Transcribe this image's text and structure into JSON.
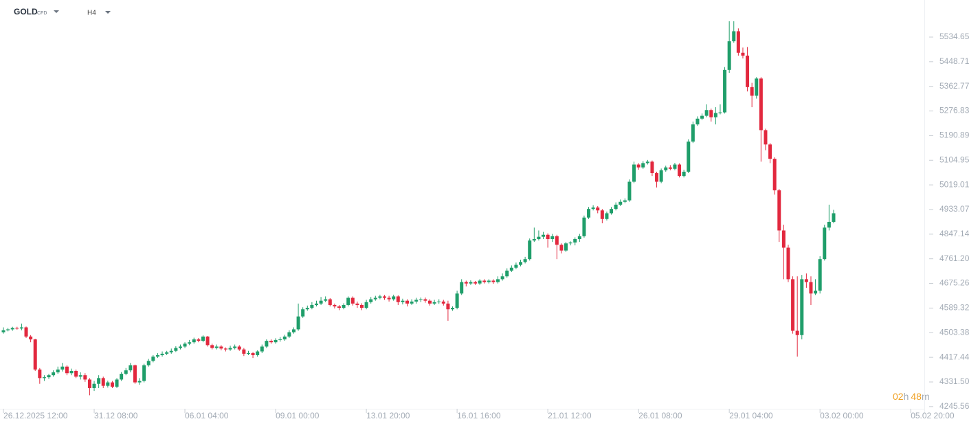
{
  "header": {
    "symbol": "GOLD",
    "symbol_type": "CFD",
    "timeframe": "H4"
  },
  "countdown": [
    "02",
    "h",
    "48",
    "m"
  ],
  "chart_data": {
    "type": "candlestick",
    "up_color": "#1f9e6a",
    "down_color": "#e2283e",
    "ylim": [
      4238,
      5664
    ],
    "yticks": [
      5534.65,
      5448.71,
      5362.77,
      5276.83,
      5190.89,
      5104.95,
      5019.01,
      4933.07,
      4847.14,
      {
        "value": 4761.2,
        "label": "4761.20"
      },
      4675.26,
      4589.32,
      4503.38,
      4417.44,
      {
        "value": 4331.5,
        "label": "4331.50"
      },
      4245.56
    ],
    "xlim": [
      -0.76,
      203
    ],
    "xticks": [
      {
        "value": 0,
        "label": "26.12.2025 12:00"
      },
      {
        "value": 20,
        "label": "31.12 08:00"
      },
      {
        "value": 40,
        "label": "06.01 04:00"
      },
      {
        "value": 60,
        "label": "09.01 00:00"
      },
      {
        "value": 80,
        "label": "13.01 20:00"
      },
      {
        "value": 100,
        "label": "16.01 16:00"
      },
      {
        "value": 120,
        "label": "21.01 12:00"
      },
      {
        "value": 140,
        "label": "26.01 08:00"
      },
      {
        "value": 160,
        "label": "29.01 04:00"
      },
      {
        "value": 180,
        "label": "03.02 00:00"
      },
      {
        "value": 200,
        "label": "05.02 20:00"
      }
    ],
    "ohlc": [
      [
        4505,
        4522,
        4500,
        4512
      ],
      [
        4512,
        4520,
        4508,
        4515
      ],
      [
        4515,
        4524,
        4510,
        4520
      ],
      [
        4520,
        4524,
        4514,
        4518
      ],
      [
        4518,
        4535,
        4512,
        4522
      ],
      [
        4522,
        4525,
        4485,
        4490
      ],
      [
        4490,
        4495,
        4470,
        4480
      ],
      [
        4480,
        4482,
        4370,
        4375
      ],
      [
        4375,
        4380,
        4325,
        4345
      ],
      [
        4345,
        4355,
        4335,
        4348
      ],
      [
        4348,
        4360,
        4342,
        4355
      ],
      [
        4355,
        4372,
        4350,
        4365
      ],
      [
        4365,
        4385,
        4360,
        4375
      ],
      [
        4375,
        4398,
        4368,
        4385
      ],
      [
        4385,
        4390,
        4355,
        4362
      ],
      [
        4362,
        4378,
        4355,
        4370
      ],
      [
        4370,
        4375,
        4345,
        4350
      ],
      [
        4350,
        4365,
        4340,
        4355
      ],
      [
        4355,
        4362,
        4332,
        4340
      ],
      [
        4340,
        4345,
        4285,
        4310
      ],
      [
        4310,
        4335,
        4300,
        4325
      ],
      [
        4325,
        4355,
        4310,
        4345
      ],
      [
        4345,
        4350,
        4310,
        4318
      ],
      [
        4318,
        4336,
        4312,
        4330
      ],
      [
        4330,
        4335,
        4310,
        4315
      ],
      [
        4315,
        4345,
        4310,
        4340
      ],
      [
        4340,
        4366,
        4335,
        4360
      ],
      [
        4360,
        4380,
        4355,
        4372
      ],
      [
        4372,
        4398,
        4365,
        4390
      ],
      [
        4390,
        4392,
        4325,
        4330
      ],
      [
        4330,
        4345,
        4322,
        4335
      ],
      [
        4335,
        4395,
        4330,
        4390
      ],
      [
        4390,
        4412,
        4385,
        4405
      ],
      [
        4405,
        4425,
        4400,
        4420
      ],
      [
        4420,
        4432,
        4415,
        4425
      ],
      [
        4425,
        4438,
        4420,
        4430
      ],
      [
        4430,
        4440,
        4425,
        4435
      ],
      [
        4435,
        4448,
        4430,
        4440
      ],
      [
        4440,
        4456,
        4436,
        4450
      ],
      [
        4450,
        4462,
        4445,
        4455
      ],
      [
        4455,
        4470,
        4450,
        4465
      ],
      [
        4465,
        4478,
        4460,
        4470
      ],
      [
        4470,
        4486,
        4465,
        4480
      ],
      [
        4480,
        4485,
        4470,
        4475
      ],
      [
        4475,
        4494,
        4470,
        4490
      ],
      [
        4490,
        4492,
        4455,
        4460
      ],
      [
        4460,
        4465,
        4445,
        4450
      ],
      [
        4450,
        4462,
        4445,
        4455
      ],
      [
        4455,
        4460,
        4442,
        4448
      ],
      [
        4448,
        4452,
        4438,
        4445
      ],
      [
        4445,
        4458,
        4440,
        4450
      ],
      [
        4450,
        4462,
        4445,
        4455
      ],
      [
        4455,
        4460,
        4440,
        4445
      ],
      [
        4445,
        4450,
        4422,
        4430
      ],
      [
        4430,
        4440,
        4425,
        4432
      ],
      [
        4432,
        4436,
        4415,
        4425
      ],
      [
        4425,
        4442,
        4420,
        4438
      ],
      [
        4438,
        4462,
        4432,
        4455
      ],
      [
        4455,
        4480,
        4450,
        4475
      ],
      [
        4475,
        4480,
        4465,
        4470
      ],
      [
        4470,
        4484,
        4465,
        4478
      ],
      [
        4478,
        4488,
        4472,
        4480
      ],
      [
        4480,
        4496,
        4475,
        4490
      ],
      [
        4490,
        4512,
        4485,
        4505
      ],
      [
        4505,
        4522,
        4500,
        4515
      ],
      [
        4515,
        4605,
        4510,
        4560
      ],
      [
        4560,
        4592,
        4555,
        4585
      ],
      [
        4585,
        4598,
        4580,
        4590
      ],
      [
        4590,
        4610,
        4585,
        4600
      ],
      [
        4600,
        4615,
        4595,
        4605
      ],
      [
        4605,
        4628,
        4600,
        4615
      ],
      [
        4615,
        4630,
        4610,
        4620
      ],
      [
        4620,
        4624,
        4595,
        4600
      ],
      [
        4600,
        4605,
        4588,
        4595
      ],
      [
        4595,
        4600,
        4582,
        4590
      ],
      [
        4590,
        4606,
        4585,
        4600
      ],
      [
        4600,
        4630,
        4595,
        4625
      ],
      [
        4625,
        4630,
        4598,
        4605
      ],
      [
        4605,
        4612,
        4590,
        4600
      ],
      [
        4600,
        4606,
        4582,
        4590
      ],
      [
        4590,
        4618,
        4585,
        4610
      ],
      [
        4610,
        4628,
        4605,
        4620
      ],
      [
        4620,
        4632,
        4615,
        4625
      ],
      [
        4625,
        4636,
        4620,
        4630
      ],
      [
        4630,
        4635,
        4618,
        4625
      ],
      [
        4625,
        4632,
        4612,
        4620
      ],
      [
        4620,
        4636,
        4615,
        4630
      ],
      [
        4630,
        4634,
        4600,
        4610
      ],
      [
        4610,
        4622,
        4602,
        4615
      ],
      [
        4615,
        4620,
        4595,
        4605
      ],
      [
        4605,
        4620,
        4600,
        4612
      ],
      [
        4612,
        4625,
        4605,
        4618
      ],
      [
        4618,
        4626,
        4610,
        4620
      ],
      [
        4620,
        4626,
        4608,
        4615
      ],
      [
        4615,
        4620,
        4598,
        4605
      ],
      [
        4605,
        4618,
        4600,
        4610
      ],
      [
        4610,
        4620,
        4604,
        4612
      ],
      [
        4612,
        4618,
        4598,
        4605
      ],
      [
        4605,
        4615,
        4545,
        4585
      ],
      [
        4585,
        4595,
        4580,
        4590
      ],
      [
        4590,
        4650,
        4585,
        4640
      ],
      [
        4640,
        4690,
        4635,
        4680
      ],
      [
        4680,
        4685,
        4665,
        4675
      ],
      [
        4675,
        4686,
        4670,
        4680
      ],
      [
        4680,
        4684,
        4670,
        4675
      ],
      [
        4675,
        4690,
        4670,
        4685
      ],
      [
        4685,
        4690,
        4675,
        4680
      ],
      [
        4680,
        4690,
        4675,
        4685
      ],
      [
        4685,
        4690,
        4674,
        4680
      ],
      [
        4680,
        4700,
        4675,
        4690
      ],
      [
        4690,
        4710,
        4685,
        4700
      ],
      [
        4700,
        4728,
        4695,
        4720
      ],
      [
        4720,
        4738,
        4715,
        4730
      ],
      [
        4730,
        4748,
        4725,
        4740
      ],
      [
        4740,
        4758,
        4735,
        4750
      ],
      [
        4750,
        4768,
        4745,
        4760
      ],
      [
        4760,
        4832,
        4755,
        4825
      ],
      [
        4825,
        4870,
        4820,
        4830
      ],
      [
        4830,
        4860,
        4825,
        4838
      ],
      [
        4838,
        4855,
        4830,
        4845
      ],
      [
        4845,
        4850,
        4800,
        4830
      ],
      [
        4830,
        4848,
        4820,
        4840
      ],
      [
        4840,
        4845,
        4760,
        4810
      ],
      [
        4810,
        4815,
        4780,
        4790
      ],
      [
        4790,
        4820,
        4785,
        4815
      ],
      [
        4815,
        4822,
        4808,
        4818
      ],
      [
        4818,
        4836,
        4808,
        4830
      ],
      [
        4830,
        4848,
        4820,
        4840
      ],
      [
        4840,
        4912,
        4835,
        4905
      ],
      [
        4905,
        4942,
        4900,
        4935
      ],
      [
        4935,
        4948,
        4930,
        4940
      ],
      [
        4940,
        4945,
        4920,
        4930
      ],
      [
        4930,
        4935,
        4885,
        4900
      ],
      [
        4900,
        4926,
        4895,
        4920
      ],
      [
        4920,
        4942,
        4915,
        4935
      ],
      [
        4935,
        4958,
        4930,
        4950
      ],
      [
        4950,
        4968,
        4945,
        4960
      ],
      [
        4960,
        4972,
        4955,
        4965
      ],
      [
        4965,
        5038,
        4960,
        5030
      ],
      [
        5030,
        5100,
        5025,
        5090
      ],
      [
        5090,
        5095,
        5072,
        5080
      ],
      [
        5080,
        5102,
        5075,
        5095
      ],
      [
        5095,
        5106,
        5090,
        5100
      ],
      [
        5100,
        5104,
        5050,
        5060
      ],
      [
        5060,
        5065,
        5010,
        5030
      ],
      [
        5030,
        5076,
        5025,
        5070
      ],
      [
        5070,
        5086,
        5065,
        5080
      ],
      [
        5080,
        5088,
        5070,
        5075
      ],
      [
        5075,
        5096,
        5070,
        5090
      ],
      [
        5090,
        5094,
        5045,
        5050
      ],
      [
        5050,
        5072,
        5045,
        5065
      ],
      [
        5065,
        5178,
        5060,
        5170
      ],
      [
        5170,
        5240,
        5165,
        5230
      ],
      [
        5230,
        5258,
        5225,
        5250
      ],
      [
        5250,
        5268,
        5245,
        5260
      ],
      [
        5260,
        5300,
        5255,
        5280
      ],
      [
        5280,
        5285,
        5240,
        5255
      ],
      [
        5255,
        5290,
        5230,
        5270
      ],
      [
        5270,
        5300,
        5265,
        5272
      ],
      [
        5272,
        5430,
        5268,
        5420
      ],
      [
        5420,
        5590,
        5410,
        5520
      ],
      [
        5520,
        5590,
        5515,
        5555
      ],
      [
        5555,
        5565,
        5470,
        5480
      ],
      [
        5480,
        5498,
        5460,
        5470
      ],
      [
        5470,
        5500,
        5345,
        5360
      ],
      [
        5360,
        5375,
        5290,
        5330
      ],
      [
        5330,
        5395,
        5320,
        5390
      ],
      [
        5390,
        5395,
        5100,
        5210
      ],
      [
        5210,
        5215,
        5140,
        5160
      ],
      [
        5160,
        5165,
        5095,
        5110
      ],
      [
        5110,
        5115,
        4985,
        5000
      ],
      [
        5000,
        5005,
        4820,
        4860
      ],
      [
        4860,
        4880,
        4690,
        4800
      ],
      [
        4800,
        4810,
        4680,
        4690
      ],
      [
        4690,
        4700,
        4500,
        4510
      ],
      [
        4510,
        4700,
        4420,
        4495
      ],
      [
        4495,
        4705,
        4480,
        4690
      ],
      [
        4690,
        4710,
        4660,
        4680
      ],
      [
        4680,
        4700,
        4600,
        4640
      ],
      [
        4640,
        4690,
        4635,
        4650
      ],
      [
        4650,
        4770,
        4640,
        4760
      ],
      [
        4760,
        4880,
        4755,
        4870
      ],
      [
        4870,
        4950,
        4860,
        4890
      ],
      [
        4890,
        4932,
        4885,
        4920
      ]
    ]
  }
}
